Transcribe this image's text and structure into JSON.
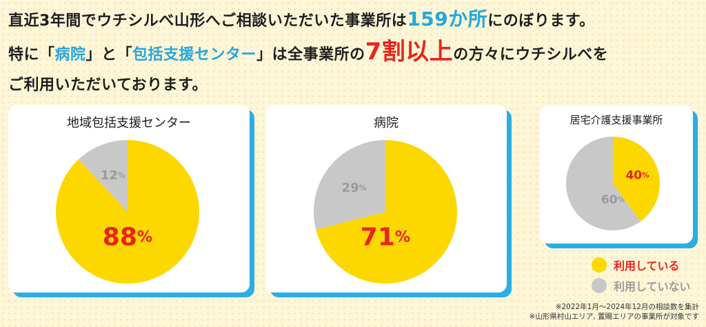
{
  "headline": {
    "line1_a": "直近3年間でウチシルべ山形へご相談いただいた事業所は",
    "line1_count": "159か所",
    "line1_b": "にのぼります。",
    "line2_a": "特に「",
    "line2_hospital": "病院",
    "line2_b": "」と「",
    "line2_center": "包括支援センター",
    "line2_c": "」は全事業所の",
    "line2_pct": "7割以上",
    "line2_d": "の方々にウチシルべを",
    "line3": "ご利用いただいております。"
  },
  "colors": {
    "using": "#fcd800",
    "not_using": "#c8c8c8",
    "accent_blue": "#2aaee3",
    "accent_red": "#e8241c",
    "label_gray": "#9a9a9a"
  },
  "legend": {
    "using_label": "利用している",
    "not_using_label": "利用していない"
  },
  "notes": {
    "line1": "※2022年1月～2024年12月の相談数を集計",
    "line2": "※山形県村山エリア, 置賜エリアの事業所が対象です"
  },
  "chart_data": [
    {
      "type": "pie",
      "title": "地域包括支援センター",
      "categories": [
        "利用している",
        "利用していない"
      ],
      "values": [
        88,
        12
      ],
      "unit": "%"
    },
    {
      "type": "pie",
      "title": "病院",
      "categories": [
        "利用している",
        "利用していない"
      ],
      "values": [
        71,
        29
      ],
      "unit": "%"
    },
    {
      "type": "pie",
      "title": "居宅介護支援事業所",
      "categories": [
        "利用している",
        "利用していない"
      ],
      "values": [
        40,
        60
      ],
      "unit": "%"
    }
  ]
}
